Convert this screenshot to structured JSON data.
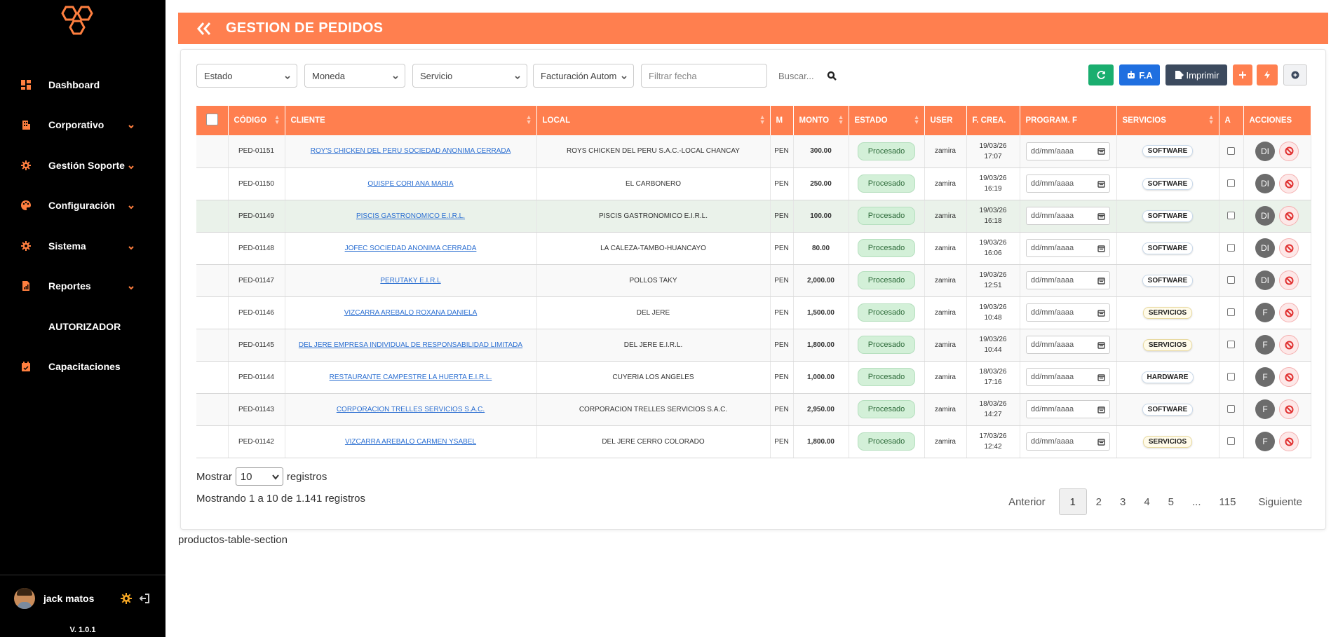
{
  "sidebar": {
    "items": [
      {
        "label": "Dashboard",
        "icon": "dashboard-icon",
        "has_chevron": false
      },
      {
        "label": "Corporativo",
        "icon": "building-icon",
        "has_chevron": true
      },
      {
        "label": "Gestión Soporte",
        "icon": "gear-icon",
        "has_chevron": true
      },
      {
        "label": "Configuración",
        "icon": "palette-icon",
        "has_chevron": true
      },
      {
        "label": "Sistema",
        "icon": "gear-icon",
        "has_chevron": true
      },
      {
        "label": "Reportes",
        "icon": "report-icon",
        "has_chevron": true
      },
      {
        "label": "AUTORIZADOR",
        "icon": "",
        "has_chevron": false
      },
      {
        "label": "Capacitaciones",
        "icon": "calendar-icon",
        "has_chevron": false
      }
    ],
    "user_name": "jack matos",
    "version": "V. 1.0.1"
  },
  "header": {
    "title": "GESTION DE PEDIDOS"
  },
  "filters": {
    "estado": "Estado",
    "moneda": "Moneda",
    "servicio": "Servicio",
    "facturacion": "Facturación Autom",
    "fecha_placeholder": "Filtrar fecha",
    "search_label": "Buscar...",
    "fa_label": "F.A",
    "imprimir_label": "Imprimir"
  },
  "colors": {
    "accent": "#ff7f4f",
    "green": "#1aae6f",
    "blue": "#1f6fe0",
    "dark": "#3c4a5e"
  },
  "table": {
    "headers": [
      "CÓDIGO",
      "CLIENTE",
      "LOCAL",
      "M",
      "MONTO",
      "ESTADO",
      "USER",
      "F. CREA.",
      "PROGRAM. F",
      "SERVICIOS",
      "A",
      "ACCIONES"
    ],
    "rows": [
      {
        "codigo": "PED-01151",
        "cliente": "ROY'S CHICKEN DEL PERU SOCIEDAD ANONIMA CERRADA",
        "local": "ROYS CHICKEN DEL PERU S.A.C.-LOCAL CHANCAY",
        "moneda": "PEN",
        "monto": "300.00",
        "estado": "Procesado",
        "user": "zamira",
        "fecha": "19/03/26",
        "hora": "17:07",
        "program": "dd/mm/aaaa",
        "servicio": "SOFTWARE",
        "accion": "DI"
      },
      {
        "codigo": "PED-01150",
        "cliente": "QUISPE CORI ANA MARIA",
        "local": "EL CARBONERO",
        "moneda": "PEN",
        "monto": "250.00",
        "estado": "Procesado",
        "user": "zamira",
        "fecha": "19/03/26",
        "hora": "16:19",
        "program": "dd/mm/aaaa",
        "servicio": "SOFTWARE",
        "accion": "DI"
      },
      {
        "codigo": "PED-01149",
        "cliente": "PISCIS GASTRONOMICO E.I.R.L.",
        "local": "PISCIS GASTRONOMICO E.I.R.L.",
        "moneda": "PEN",
        "monto": "100.00",
        "estado": "Procesado",
        "user": "zamira",
        "fecha": "19/03/26",
        "hora": "16:18",
        "program": "dd/mm/aaaa",
        "servicio": "SOFTWARE",
        "accion": "DI"
      },
      {
        "codigo": "PED-01148",
        "cliente": "JOFEC SOCIEDAD ANONIMA CERRADA",
        "local": "LA CALEZA-TAMBO-HUANCAYO",
        "moneda": "PEN",
        "monto": "80.00",
        "estado": "Procesado",
        "user": "zamira",
        "fecha": "19/03/26",
        "hora": "16:06",
        "program": "dd/mm/aaaa",
        "servicio": "SOFTWARE",
        "accion": "DI"
      },
      {
        "codigo": "PED-01147",
        "cliente": "PERUTAKY E.I.R.L",
        "local": "POLLOS TAKY",
        "moneda": "PEN",
        "monto": "2,000.00",
        "estado": "Procesado",
        "user": "zamira",
        "fecha": "19/03/26",
        "hora": "12:51",
        "program": "dd/mm/aaaa",
        "servicio": "SOFTWARE",
        "accion": "DI"
      },
      {
        "codigo": "PED-01146",
        "cliente": "VIZCARRA AREBALO ROXANA DANIELA",
        "local": "DEL JERE",
        "moneda": "PEN",
        "monto": "1,500.00",
        "estado": "Procesado",
        "user": "zamira",
        "fecha": "19/03/26",
        "hora": "10:48",
        "program": "dd/mm/aaaa",
        "servicio": "SERVICIOS",
        "accion": "F"
      },
      {
        "codigo": "PED-01145",
        "cliente": "DEL JERE EMPRESA INDIVIDUAL DE RESPONSABILIDAD LIMITADA",
        "local": "DEL JERE E.I.R.L.",
        "moneda": "PEN",
        "monto": "1,800.00",
        "estado": "Procesado",
        "user": "zamira",
        "fecha": "19/03/26",
        "hora": "10:44",
        "program": "dd/mm/aaaa",
        "servicio": "SERVICIOS",
        "accion": "F"
      },
      {
        "codigo": "PED-01144",
        "cliente": "RESTAURANTE CAMPESTRE LA HUERTA E.I.R.L.",
        "local": "CUYERIA LOS ANGELES",
        "moneda": "PEN",
        "monto": "1,000.00",
        "estado": "Procesado",
        "user": "zamira",
        "fecha": "18/03/26",
        "hora": "17:16",
        "program": "dd/mm/aaaa",
        "servicio": "HARDWARE",
        "accion": "F"
      },
      {
        "codigo": "PED-01143",
        "cliente": "CORPORACION TRELLES SERVICIOS S.A.C.",
        "local": "CORPORACION TRELLES SERVICIOS S.A.C.",
        "moneda": "PEN",
        "monto": "2,950.00",
        "estado": "Procesado",
        "user": "zamira",
        "fecha": "18/03/26",
        "hora": "14:27",
        "program": "dd/mm/aaaa",
        "servicio": "SOFTWARE",
        "accion": "F"
      },
      {
        "codigo": "PED-01142",
        "cliente": "VIZCARRA AREBALO CARMEN YSABEL",
        "local": "DEL JERE CERRO COLORADO",
        "moneda": "PEN",
        "monto": "1,800.00",
        "estado": "Procesado",
        "user": "zamira",
        "fecha": "17/03/26",
        "hora": "12:42",
        "program": "dd/mm/aaaa",
        "servicio": "SERVICIOS",
        "accion": "F"
      }
    ]
  },
  "footer": {
    "mostrar": "Mostrar",
    "per_page": "10",
    "registros": "registros",
    "showing": "Mostrando 1 a 10 de 1.141 registros",
    "pager": [
      "Anterior",
      "1",
      "2",
      "3",
      "4",
      "5",
      "...",
      "115",
      "Siguiente"
    ],
    "active_page": "1"
  },
  "section_label": "productos-table-section"
}
